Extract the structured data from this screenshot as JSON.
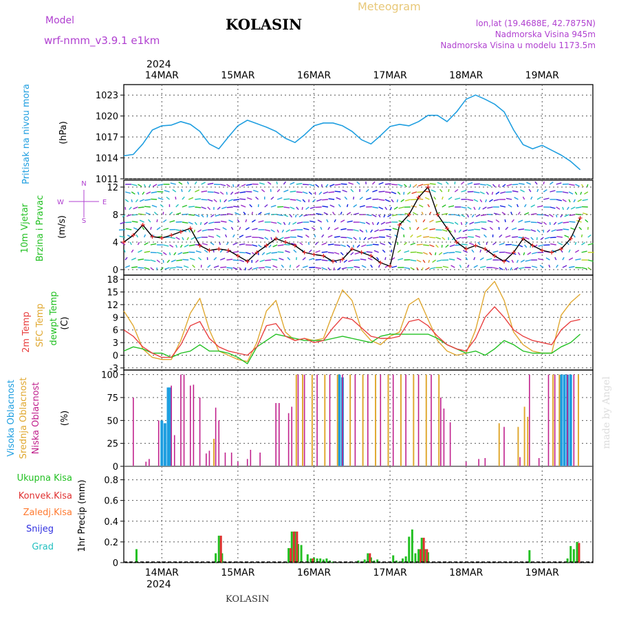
{
  "header": {
    "model_label": "Model",
    "model_name": "wrf-nmm_v3.9.1 e1km",
    "station": "KOLASIN",
    "meteogram_title": "Meteogram",
    "lonlat": "lon,lat (19.4688E, 42.7875N)",
    "elevation": "Nadmorska Visina 945m",
    "model_elevation": "Nadmorska Visina u modelu 1173.5m"
  },
  "footer": {
    "station": "KOLASIN",
    "watermark": "made by Angel"
  },
  "colors": {
    "pressure": "#1e9ee0",
    "temp2m": "#e84040",
    "sfc_temp": "#e0a830",
    "dewpoint": "#22c022",
    "wind_speed": "#000000",
    "wind_speed_marker": "#e02020",
    "high_cloud": "#1e9ee0",
    "mid_cloud": "#e0a830",
    "low_cloud": "#c0208c",
    "total_precip": "#22c022",
    "conv_precip": "#e03030",
    "frozen_precip": "#ff7a30",
    "snow": "#3030e0",
    "graupel": "#22c0c0",
    "label_purple": "#b040d0"
  },
  "chart_data": [
    {
      "type": "line",
      "panel": "pressure",
      "ylabel": "Pritisak na nivou mora",
      "unit": "(hPa)",
      "yticks": [
        1011,
        1014,
        1017,
        1020,
        1023
      ],
      "ylim": [
        1011,
        1024.5
      ],
      "x_hours": [
        0,
        3,
        6,
        9,
        12,
        15,
        18,
        21,
        24,
        27,
        30,
        33,
        36,
        39,
        42,
        45,
        48,
        51,
        54,
        57,
        60,
        63,
        66,
        69,
        72,
        75,
        78,
        81,
        84,
        87,
        90,
        93,
        96,
        99,
        102,
        105,
        108,
        111,
        114,
        117,
        120,
        123,
        126,
        129,
        132,
        135,
        138,
        141,
        144
      ],
      "values": [
        1014.3,
        1014.5,
        1016.0,
        1018.0,
        1018.6,
        1018.7,
        1019.2,
        1018.8,
        1017.8,
        1016.0,
        1015.3,
        1017.0,
        1018.6,
        1019.4,
        1018.9,
        1018.4,
        1017.8,
        1016.8,
        1016.2,
        1017.3,
        1018.6,
        1019.0,
        1019.0,
        1018.6,
        1017.8,
        1016.6,
        1016.0,
        1017.2,
        1018.5,
        1018.8,
        1018.6,
        1019.2,
        1020.1,
        1020.1,
        1019.2,
        1020.6,
        1022.4,
        1023.0,
        1022.4,
        1021.7,
        1020.6,
        1018.0,
        1015.9,
        1015.3,
        1015.8,
        1015.1,
        1014.4,
        1013.5,
        1012.3
      ]
    },
    {
      "type": "line",
      "panel": "wind",
      "ylabel": "10m Vjetar Brzina i Pravac",
      "unit": "(m/s)",
      "direction_legend": [
        "N",
        "E",
        "S",
        "W"
      ],
      "yticks": [
        0,
        4,
        8,
        12
      ],
      "ylim": [
        -0.8,
        13
      ],
      "x_hours": [
        0,
        3,
        6,
        9,
        12,
        15,
        18,
        21,
        24,
        27,
        30,
        33,
        36,
        39,
        42,
        45,
        48,
        51,
        54,
        57,
        60,
        63,
        66,
        69,
        72,
        75,
        78,
        81,
        84,
        87,
        90,
        93,
        96,
        99,
        102,
        105,
        108,
        111,
        114,
        117,
        120,
        123,
        126,
        129,
        132,
        135,
        138,
        141,
        144
      ],
      "values": [
        4.0,
        5.0,
        6.5,
        4.8,
        4.6,
        5.0,
        5.5,
        6.0,
        3.5,
        2.8,
        3.0,
        2.8,
        2.0,
        1.2,
        2.5,
        3.5,
        4.5,
        4.0,
        3.5,
        2.5,
        2.2,
        2.0,
        1.2,
        1.5,
        3.0,
        2.5,
        2.0,
        1.0,
        0.5,
        6.5,
        8.0,
        10.5,
        12.0,
        8.0,
        6.0,
        4.0,
        3.0,
        3.5,
        3.0,
        2.0,
        1.2,
        2.5,
        4.5,
        3.5,
        2.8,
        2.5,
        3.0,
        4.5,
        7.5
      ]
    },
    {
      "type": "line",
      "panel": "temperature",
      "series_labels": [
        "2m Temp",
        "SFC Temp",
        "dewpt Temp"
      ],
      "unit": "(C)",
      "yticks": [
        -3,
        0,
        3,
        6,
        9,
        12,
        15,
        18
      ],
      "ylim": [
        -3.5,
        19
      ],
      "x_hours": [
        0,
        3,
        6,
        9,
        12,
        15,
        18,
        21,
        24,
        27,
        30,
        33,
        36,
        39,
        42,
        45,
        48,
        51,
        54,
        57,
        60,
        63,
        66,
        69,
        72,
        75,
        78,
        81,
        84,
        87,
        90,
        93,
        96,
        99,
        102,
        105,
        108,
        111,
        114,
        117,
        120,
        123,
        126,
        129,
        132,
        135,
        138,
        141,
        144
      ],
      "series": [
        {
          "name": "2m Temp",
          "values": [
            6.0,
            4.5,
            2.0,
            0.5,
            -0.5,
            -0.5,
            2.5,
            7.0,
            8.0,
            4.0,
            2.0,
            1.0,
            0.5,
            0.0,
            2.0,
            7.0,
            7.5,
            4.5,
            3.5,
            4.0,
            3.0,
            3.5,
            6.5,
            9.0,
            8.5,
            6.5,
            4.5,
            4.0,
            4.0,
            4.5,
            8.0,
            8.5,
            7.0,
            4.5,
            2.5,
            1.5,
            1.0,
            4.0,
            9.0,
            11.5,
            9.0,
            6.0,
            4.5,
            3.5,
            3.0,
            2.5,
            6.0,
            8.0,
            8.5
          ]
        },
        {
          "name": "SFC Temp",
          "values": [
            10.5,
            7.0,
            1.5,
            -0.5,
            -1.0,
            -1.0,
            3.5,
            10.0,
            13.5,
            6.0,
            1.0,
            0.0,
            -1.0,
            -1.5,
            3.0,
            10.5,
            13.0,
            5.5,
            3.5,
            4.0,
            3.5,
            4.0,
            10.0,
            15.5,
            13.0,
            6.0,
            3.5,
            2.5,
            4.5,
            5.5,
            12.0,
            13.5,
            8.5,
            3.5,
            1.0,
            0.0,
            0.5,
            6.0,
            15.0,
            17.5,
            13.0,
            5.5,
            2.5,
            1.0,
            0.5,
            0.5,
            9.5,
            12.5,
            14.5
          ]
        },
        {
          "name": "dewpt Temp",
          "values": [
            1.0,
            2.0,
            1.5,
            0.5,
            0.5,
            -0.5,
            0.5,
            1.0,
            2.5,
            1.0,
            1.0,
            0.5,
            -0.5,
            -2.0,
            2.0,
            3.5,
            5.0,
            4.5,
            4.0,
            3.5,
            3.5,
            3.5,
            4.0,
            4.5,
            4.0,
            3.5,
            3.0,
            4.5,
            5.0,
            5.0,
            5.0,
            5.0,
            5.0,
            4.0,
            2.5,
            1.5,
            0.5,
            1.0,
            0.0,
            1.5,
            3.5,
            2.5,
            1.0,
            0.5,
            0.5,
            0.5,
            2.0,
            3.0,
            5.0
          ]
        }
      ]
    },
    {
      "type": "bar",
      "panel": "cloud",
      "series_labels": [
        "Visoka Oblacnost",
        "Srednja Oblacnost",
        "Niska Oblacnost"
      ],
      "unit": "(%)",
      "yticks": [
        0,
        25,
        50,
        75,
        100
      ],
      "ylim": [
        0,
        105
      ],
      "series": [
        {
          "name": "Visoka Oblacnost",
          "values": [
            {
              "h": 12,
              "v": 50
            },
            {
              "h": 13,
              "v": 47
            },
            {
              "h": 14,
              "v": 86
            },
            {
              "h": 14.5,
              "v": 86
            },
            {
              "h": 68,
              "v": 100
            },
            {
              "h": 69,
              "v": 97
            },
            {
              "h": 138,
              "v": 100
            },
            {
              "h": 139,
              "v": 100
            },
            {
              "h": 140,
              "v": 100
            },
            {
              "h": 141,
              "v": 100
            }
          ]
        },
        {
          "name": "Srednja Oblacnost",
          "values": [
            {
              "h": 28,
              "v": 30
            },
            {
              "h": 54,
              "v": 100
            },
            {
              "h": 56,
              "v": 100
            },
            {
              "h": 59,
              "v": 100
            },
            {
              "h": 63,
              "v": 100
            },
            {
              "h": 67,
              "v": 100
            },
            {
              "h": 71,
              "v": 100
            },
            {
              "h": 75,
              "v": 100
            },
            {
              "h": 79,
              "v": 100
            },
            {
              "h": 83,
              "v": 100
            },
            {
              "h": 87,
              "v": 100
            },
            {
              "h": 91,
              "v": 100
            },
            {
              "h": 95,
              "v": 100
            },
            {
              "h": 99,
              "v": 100
            },
            {
              "h": 118,
              "v": 47
            },
            {
              "h": 124,
              "v": 43
            },
            {
              "h": 126,
              "v": 65
            },
            {
              "h": 127,
              "v": 54
            },
            {
              "h": 135,
              "v": 100
            },
            {
              "h": 137,
              "v": 100
            },
            {
              "h": 143,
              "v": 100
            }
          ]
        },
        {
          "name": "Niska Oblacnost",
          "values": [
            {
              "h": 3,
              "v": 75
            },
            {
              "h": 7,
              "v": 5
            },
            {
              "h": 8,
              "v": 8
            },
            {
              "h": 11,
              "v": 50
            },
            {
              "h": 15,
              "v": 88
            },
            {
              "h": 16,
              "v": 34
            },
            {
              "h": 18,
              "v": 100
            },
            {
              "h": 19,
              "v": 100
            },
            {
              "h": 21,
              "v": 88
            },
            {
              "h": 22,
              "v": 89
            },
            {
              "h": 24,
              "v": 75
            },
            {
              "h": 26,
              "v": 14
            },
            {
              "h": 27,
              "v": 17
            },
            {
              "h": 29,
              "v": 64
            },
            {
              "h": 30,
              "v": 50
            },
            {
              "h": 32,
              "v": 15
            },
            {
              "h": 34,
              "v": 15
            },
            {
              "h": 36,
              "v": 5
            },
            {
              "h": 39,
              "v": 8
            },
            {
              "h": 40,
              "v": 18
            },
            {
              "h": 43,
              "v": 15
            },
            {
              "h": 48,
              "v": 69
            },
            {
              "h": 49,
              "v": 69
            },
            {
              "h": 52,
              "v": 58
            },
            {
              "h": 53,
              "v": 65
            },
            {
              "h": 55,
              "v": 100
            },
            {
              "h": 57,
              "v": 100
            },
            {
              "h": 61,
              "v": 100
            },
            {
              "h": 65,
              "v": 100
            },
            {
              "h": 69,
              "v": 100
            },
            {
              "h": 73,
              "v": 100
            },
            {
              "h": 77,
              "v": 100
            },
            {
              "h": 81,
              "v": 100
            },
            {
              "h": 85,
              "v": 100
            },
            {
              "h": 89,
              "v": 100
            },
            {
              "h": 93,
              "v": 100
            },
            {
              "h": 97,
              "v": 100
            },
            {
              "h": 100,
              "v": 75
            },
            {
              "h": 101,
              "v": 63
            },
            {
              "h": 103,
              "v": 48
            },
            {
              "h": 108,
              "v": 5
            },
            {
              "h": 112,
              "v": 8
            },
            {
              "h": 114,
              "v": 9
            },
            {
              "h": 120,
              "v": 43
            },
            {
              "h": 125,
              "v": 10
            },
            {
              "h": 128,
              "v": 100
            },
            {
              "h": 131,
              "v": 9
            },
            {
              "h": 134,
              "v": 100
            },
            {
              "h": 136,
              "v": 100
            },
            {
              "h": 140,
              "v": 100
            },
            {
              "h": 142,
              "v": 100
            }
          ]
        }
      ]
    },
    {
      "type": "bar",
      "panel": "precipitation",
      "series_labels": [
        "Ukupna Kisa",
        "Konvek.Kisa",
        "Zaledj.Kisa",
        "Snijeg",
        "Grad"
      ],
      "ylabel": "1hr Precip (mm)",
      "yticks": [
        0,
        0.2,
        0.4,
        0.6,
        0.8
      ],
      "ylim": [
        0,
        0.93
      ],
      "series": [
        {
          "name": "Ukupna Kisa",
          "values": [
            {
              "h": 4,
              "v": 0.13
            },
            {
              "h": 29,
              "v": 0.09
            },
            {
              "h": 30,
              "v": 0.26
            },
            {
              "h": 31,
              "v": 0.09
            },
            {
              "h": 52,
              "v": 0.14
            },
            {
              "h": 53,
              "v": 0.3
            },
            {
              "h": 54,
              "v": 0.3
            },
            {
              "h": 55,
              "v": 0.18
            },
            {
              "h": 56,
              "v": 0.17
            },
            {
              "h": 58,
              "v": 0.08
            },
            {
              "h": 59,
              "v": 0.04
            },
            {
              "h": 60,
              "v": 0.05
            },
            {
              "h": 61,
              "v": 0.04
            },
            {
              "h": 62,
              "v": 0.04
            },
            {
              "h": 63,
              "v": 0.03
            },
            {
              "h": 64,
              "v": 0.04
            },
            {
              "h": 65,
              "v": 0.02
            },
            {
              "h": 66,
              "v": 0.01
            },
            {
              "h": 74,
              "v": 0.02
            },
            {
              "h": 76,
              "v": 0.03
            },
            {
              "h": 77,
              "v": 0.09
            },
            {
              "h": 78,
              "v": 0.05
            },
            {
              "h": 79,
              "v": 0.02
            },
            {
              "h": 80,
              "v": 0.03
            },
            {
              "h": 85,
              "v": 0.07
            },
            {
              "h": 86,
              "v": 0.02
            },
            {
              "h": 87,
              "v": 0.01
            },
            {
              "h": 88,
              "v": 0.04
            },
            {
              "h": 89,
              "v": 0.06
            },
            {
              "h": 90,
              "v": 0.25
            },
            {
              "h": 91,
              "v": 0.32
            },
            {
              "h": 92,
              "v": 0.09
            },
            {
              "h": 93,
              "v": 0.13
            },
            {
              "h": 94,
              "v": 0.24
            },
            {
              "h": 95,
              "v": 0.13
            },
            {
              "h": 96,
              "v": 0.1
            },
            {
              "h": 128,
              "v": 0.12
            },
            {
              "h": 140,
              "v": 0.04
            },
            {
              "h": 141,
              "v": 0.16
            },
            {
              "h": 142,
              "v": 0.13
            },
            {
              "h": 143,
              "v": 0.2
            }
          ]
        },
        {
          "name": "Konvek.Kisa",
          "values": [
            {
              "h": 30,
              "v": 0.26
            },
            {
              "h": 52,
              "v": 0.14
            },
            {
              "h": 53,
              "v": 0.3
            },
            {
              "h": 54,
              "v": 0.3
            },
            {
              "h": 59,
              "v": 0.04
            },
            {
              "h": 77,
              "v": 0.09
            },
            {
              "h": 93,
              "v": 0.13
            },
            {
              "h": 94,
              "v": 0.24
            },
            {
              "h": 95,
              "v": 0.13
            },
            {
              "h": 143,
              "v": 0.19
            }
          ]
        }
      ]
    }
  ],
  "time_axis": {
    "year": "2024",
    "start_hour_offset": 12,
    "days": [
      "14MAR",
      "15MAR",
      "16MAR",
      "17MAR",
      "18MAR",
      "19MAR"
    ]
  }
}
